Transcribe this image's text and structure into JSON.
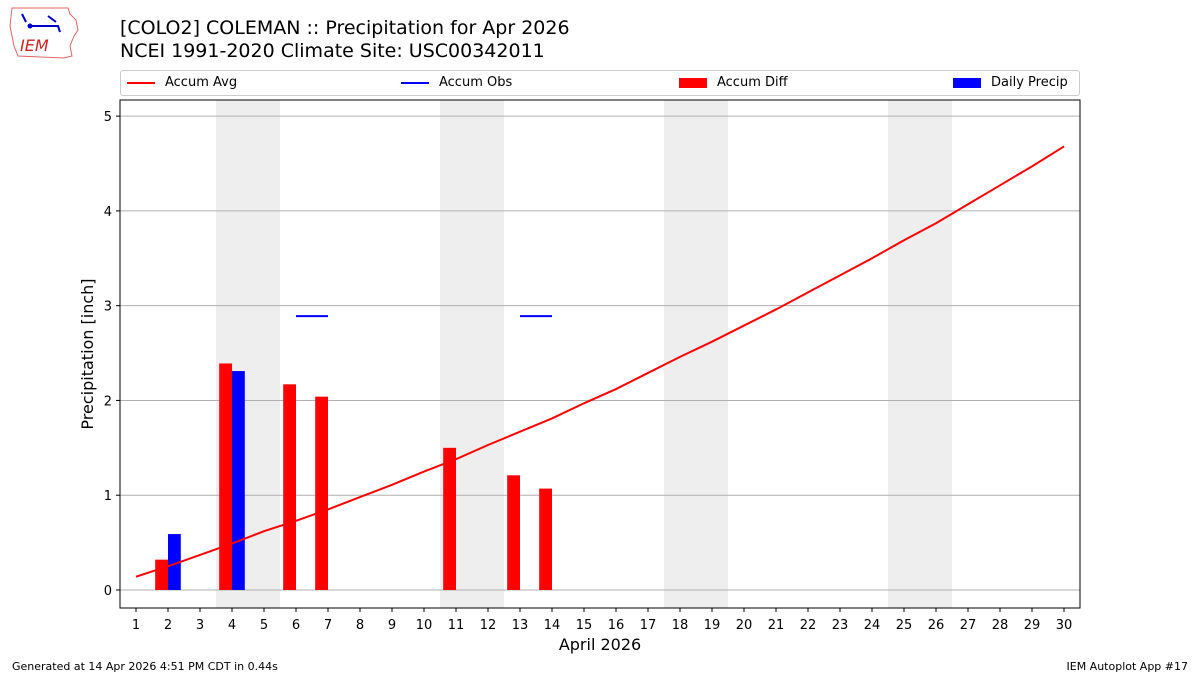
{
  "title_line1": "[COLO2] COLEMAN :: Precipitation for Apr 2026",
  "title_line2": "NCEI 1991-2020 Climate Site: USC00342011",
  "logo_text": "IEM",
  "footer_left": "Generated at 14 Apr 2026 4:51 PM CDT in 0.44s",
  "footer_right": "IEM Autoplot App #17",
  "chart_data": {
    "type": "bar",
    "xlabel": "April 2026",
    "ylabel": "Precipitation [inch]",
    "xlim": [
      0.5,
      30.5
    ],
    "ylim": [
      -0.19,
      5.17
    ],
    "yticks": [
      0,
      1,
      2,
      3,
      4,
      5
    ],
    "grid": "y",
    "legend_placement": "top",
    "weekend_shading_days": [
      [
        4,
        5
      ],
      [
        11,
        12
      ],
      [
        18,
        19
      ],
      [
        25,
        26
      ]
    ],
    "days": [
      1,
      2,
      3,
      4,
      5,
      6,
      7,
      8,
      9,
      10,
      11,
      12,
      13,
      14,
      15,
      16,
      17,
      18,
      19,
      20,
      21,
      22,
      23,
      24,
      25,
      26,
      27,
      28,
      29,
      30
    ],
    "series": [
      {
        "name": "Accum Avg",
        "type": "line",
        "color": "#ff0000",
        "values": [
          0.14,
          0.25,
          0.37,
          0.49,
          0.62,
          0.73,
          0.85,
          0.98,
          1.11,
          1.25,
          1.38,
          1.53,
          1.67,
          1.81,
          1.97,
          2.12,
          2.29,
          2.46,
          2.62,
          2.79,
          2.96,
          3.14,
          3.32,
          3.5,
          3.69,
          3.87,
          4.07,
          4.27,
          4.47,
          4.68
        ]
      },
      {
        "name": "Accum Obs",
        "type": "line",
        "color": "#0000ff",
        "values": [
          null,
          null,
          null,
          null,
          null,
          2.89,
          2.89,
          null,
          null,
          null,
          null,
          null,
          2.89,
          2.89,
          null,
          null,
          null,
          null,
          null,
          null,
          null,
          null,
          null,
          null,
          null,
          null,
          null,
          null,
          null,
          null
        ]
      },
      {
        "name": "Accum Diff",
        "type": "bar",
        "color": "#ff0000",
        "values": [
          0,
          0.32,
          0,
          2.39,
          0,
          2.17,
          2.04,
          0,
          0,
          0,
          1.5,
          0,
          1.21,
          1.07,
          0,
          0,
          0,
          0,
          0,
          0,
          0,
          0,
          0,
          0,
          0,
          0,
          0,
          0,
          0,
          0
        ]
      },
      {
        "name": "Daily Precip",
        "type": "bar",
        "color": "#0000ff",
        "values": [
          0,
          0.59,
          0,
          2.31,
          0,
          0,
          0,
          0,
          0,
          0,
          0,
          0,
          0,
          0,
          0,
          0,
          0,
          0,
          0,
          0,
          0,
          0,
          0,
          0,
          0,
          0,
          0,
          0,
          0,
          0
        ]
      }
    ]
  }
}
